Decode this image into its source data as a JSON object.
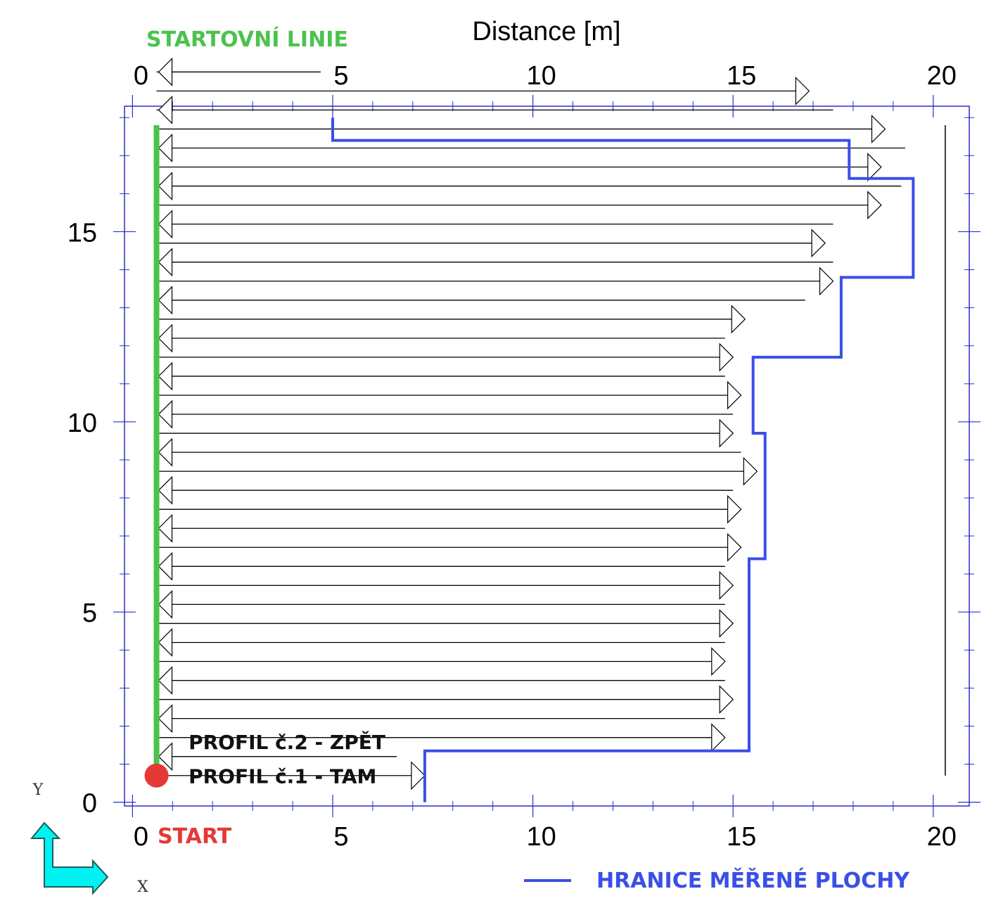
{
  "chart_data": {
    "type": "line",
    "title": "",
    "xlabel": "Distance [m]",
    "ylabel": "",
    "xlim": [
      -0.2,
      20.9
    ],
    "ylim": [
      -0.1,
      18.3
    ],
    "x_ticks": [
      0,
      5,
      10,
      15,
      20
    ],
    "y_ticks": [
      0,
      5,
      10,
      15
    ],
    "grid": false,
    "start_line": {
      "label": "STARTOVNÍ LINIE",
      "color": "#4cc24c",
      "x": 0.6,
      "y_from": 0.7,
      "y_to": 17.8
    },
    "start_point": {
      "label": "START",
      "color": "#e53935",
      "x": 0.6,
      "y": 0.7
    },
    "profile_labels": [
      {
        "text": "PROFIL č.1 - TAM",
        "x": 1.4,
        "y": 0.5
      },
      {
        "text": "PROFIL č.2 - ZPĚT",
        "x": 1.4,
        "y": 1.4
      }
    ],
    "profiles": {
      "y_start": 0.7,
      "spacing": 0.5,
      "x_start": 0.6,
      "ends": [
        7.3,
        6.6,
        14.8,
        14.8,
        15.0,
        14.8,
        14.8,
        14.8,
        15.0,
        14.8,
        15.0,
        14.8,
        15.2,
        14.8,
        15.2,
        15.0,
        15.6,
        15.2,
        15.0,
        15.0,
        15.2,
        14.8,
        15.0,
        14.8,
        15.3,
        16.8,
        17.5,
        17.5,
        17.3,
        17.5,
        18.7,
        19.2,
        18.7,
        19.3,
        18.8,
        17.5,
        16.9,
        4.7
      ],
      "line_color": "#000000"
    },
    "series": [
      {
        "name": "HRANICE MĚŘENÉ PLOCHY",
        "color": "#3a4fe6",
        "x": [
          7.3,
          7.3,
          15.4,
          15.4,
          15.8,
          15.8,
          15.5,
          15.5,
          17.7,
          17.7,
          19.5,
          19.5,
          17.9,
          17.9,
          5.0,
          5.0
        ],
        "y": [
          0.0,
          1.35,
          1.35,
          6.4,
          6.4,
          9.7,
          9.7,
          11.7,
          11.7,
          13.8,
          13.8,
          16.4,
          16.4,
          17.4,
          17.4,
          18.0
        ]
      }
    ],
    "right_marker": {
      "x": 20.3,
      "y_from": 0.7,
      "y_to": 17.8,
      "color": "#000000"
    },
    "frame_color": "#2d2dc8"
  },
  "ucs": {
    "x_label": "X",
    "y_label": "Y",
    "color": "#00f2f2"
  }
}
